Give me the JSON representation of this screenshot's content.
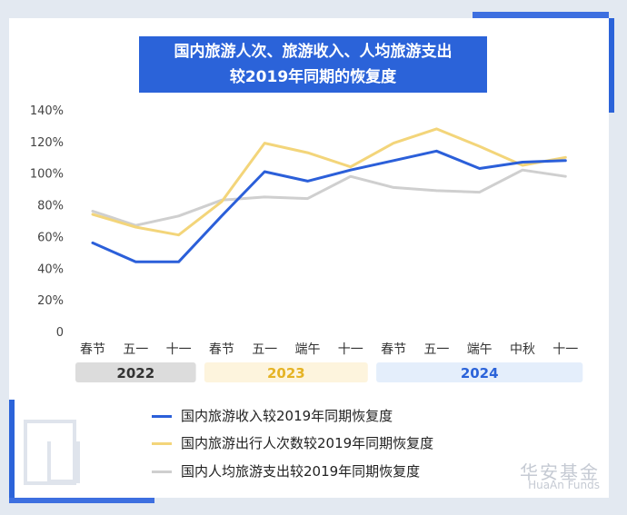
{
  "brand": {
    "name_cn": "华安基金",
    "name_en": "HuaAn Funds"
  },
  "colors": {
    "income": "#2b5fd9",
    "trips": "#f3d57a",
    "per_capita": "#cfcfcf",
    "title_bg": "#2b63d9"
  },
  "chart_data": {
    "type": "line",
    "title": "国内旅游人次、旅游收入、人均旅游支出较2019年同期的恢复度",
    "title_lines": [
      "国内旅游人次、旅游收入、人均旅游支出",
      "较2019年同期的恢复度"
    ],
    "categories": [
      "春节",
      "五一",
      "十一",
      "春节",
      "五一",
      "端午",
      "十一",
      "春节",
      "五一",
      "端午",
      "中秋",
      "十一"
    ],
    "year_groups": [
      {
        "label": "2022",
        "start": 0,
        "end": 2
      },
      {
        "label": "2023",
        "start": 3,
        "end": 6
      },
      {
        "label": "2024",
        "start": 7,
        "end": 11
      }
    ],
    "y_ticks": [
      "0",
      "20%",
      "40%",
      "60%",
      "80%",
      "100%",
      "120%",
      "140%"
    ],
    "ylim": [
      0,
      140
    ],
    "series": [
      {
        "name": "国内旅游收入较2019年同期恢复度",
        "color_key": "income",
        "values": [
          56,
          44,
          44,
          73,
          101,
          95,
          102,
          108,
          114,
          103,
          107,
          108
        ]
      },
      {
        "name": "国内旅游出行人次数较2019年同期恢复度",
        "color_key": "trips",
        "values": [
          74,
          66,
          61,
          82,
          119,
          113,
          104,
          119,
          128,
          117,
          105,
          110
        ]
      },
      {
        "name": "国内人均旅游支出较2019年同期恢复度",
        "color_key": "per_capita",
        "values": [
          76,
          67,
          73,
          83,
          85,
          84,
          98,
          91,
          89,
          88,
          102,
          98
        ]
      }
    ]
  }
}
